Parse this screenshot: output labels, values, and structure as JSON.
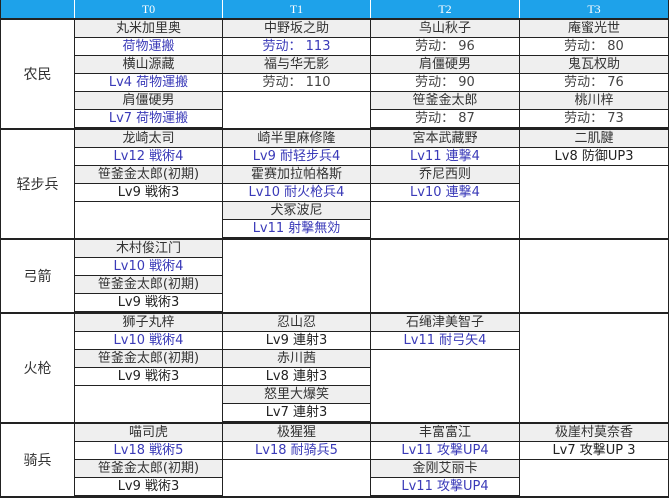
{
  "header": {
    "corner": "",
    "tiers": [
      "T0",
      "T1",
      "T2",
      "T3"
    ],
    "color": "#1ea2ea"
  },
  "groups": [
    {
      "category": "农民",
      "rows": 6,
      "columns": [
        [
          {
            "name": "丸米加里奥",
            "skill": "荷物運搬",
            "color": "blue"
          },
          {
            "name": "横山源藏",
            "skill": "Lv4 荷物運搬",
            "color": "blue"
          },
          {
            "name": "肩僵硬男",
            "skill": "Lv7 荷物運搬",
            "color": "blue"
          }
        ],
        [
          {
            "name": "中野坂之助",
            "skill": "劳动： 113",
            "color": "blue"
          },
          {
            "name": "福与华无影",
            "skill": "劳动： 110",
            "color": "gray"
          }
        ],
        [
          {
            "name": "鸟山秋子",
            "skill": "劳动： 96",
            "color": "gray"
          },
          {
            "name": "肩僵硬男",
            "skill": "劳动： 90",
            "color": "gray"
          },
          {
            "name": "笹釜金太郎",
            "skill": "劳动： 87",
            "color": "gray"
          }
        ],
        [
          {
            "name": "庵蜜光世",
            "skill": "劳动： 80",
            "color": "gray"
          },
          {
            "name": "鬼瓦权助",
            "skill": "劳动： 76",
            "color": "gray"
          },
          {
            "name": "桃川梓",
            "skill": "劳动： 73",
            "color": "gray"
          }
        ]
      ]
    },
    {
      "category": "轻步兵",
      "rows": 6,
      "columns": [
        [
          {
            "name": "龙崎太司",
            "skill": "Lv12 戦術4",
            "color": "blue"
          },
          {
            "name": "笹釜金太郎(初期)",
            "skill": "Lv9 戦術3",
            "color": "black"
          }
        ],
        [
          {
            "name": "崎半里麻修隆",
            "skill": "Lv9 耐轻步兵4",
            "color": "blue"
          },
          {
            "name": "霍赛加拉帕格斯",
            "skill": "Lv10 耐火枪兵4",
            "color": "blue"
          },
          {
            "name": "犬冢波尼",
            "skill": "Lv11 射撃無効",
            "color": "blue"
          }
        ],
        [
          {
            "name": "宮本武藏野",
            "skill": "Lv11 連撃4",
            "color": "blue"
          },
          {
            "name": "乔尼西则",
            "skill": "Lv10 連撃4",
            "color": "blue"
          }
        ],
        [
          {
            "name": "二肌腱",
            "skill": "Lv8 防御UP3",
            "color": "black"
          }
        ]
      ]
    },
    {
      "category": "弓箭",
      "rows": 4,
      "columns": [
        [
          {
            "name": "木村俊江门",
            "skill": "Lv10 戦術4",
            "color": "blue"
          },
          {
            "name": "笹釜金太郎(初期)",
            "skill": "Lv9 戦術3",
            "color": "black"
          }
        ],
        [],
        [],
        []
      ]
    },
    {
      "category": "火枪",
      "rows": 6,
      "columns": [
        [
          {
            "name": "狮子丸梓",
            "skill": "Lv10 戦術4",
            "color": "blue"
          },
          {
            "name": "笹釜金太郎(初期)",
            "skill": "Lv9 戦術3",
            "color": "black"
          }
        ],
        [
          {
            "name": "忍山忍",
            "skill": "Lv9 連射3",
            "color": "black"
          },
          {
            "name": "赤川茜",
            "skill": "Lv8 連射3",
            "color": "black"
          },
          {
            "name": "怒里大爆笑",
            "skill": "Lv7 連射3",
            "color": "black"
          }
        ],
        [
          {
            "name": "石绳津美智子",
            "skill": "Lv11 耐弓矢4",
            "color": "blue"
          }
        ],
        []
      ]
    },
    {
      "category": "骑兵",
      "rows": 4,
      "columns": [
        [
          {
            "name": "喵司虎",
            "skill": "Lv18 戦術5",
            "color": "blue"
          },
          {
            "name": "笹釜金太郎(初期)",
            "skill": "Lv9 戦術3",
            "color": "black"
          }
        ],
        [
          {
            "name": "极猩猩",
            "skill": "Lv18 耐骑兵5",
            "color": "blue"
          }
        ],
        [
          {
            "name": "丰富富江",
            "skill": "Lv11 攻撃UP4",
            "color": "blue"
          },
          {
            "name": "金刚艾丽卡",
            "skill": "Lv11 攻撃UP4",
            "color": "blue"
          }
        ],
        [
          {
            "name": "极崖村莫奈香",
            "skill": "Lv7 攻撃UP 3",
            "color": "black"
          }
        ]
      ]
    }
  ]
}
